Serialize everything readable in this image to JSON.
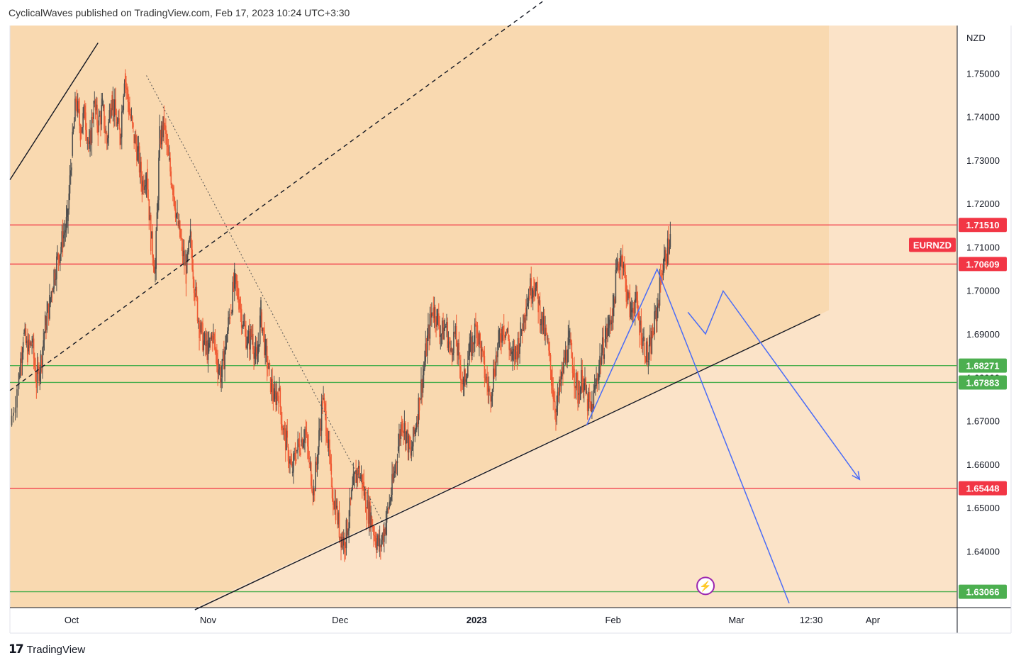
{
  "header": {
    "published_line": "CyclicalWaves published on TradingView.com, Feb 17, 2023 10:24 UTC+3:30"
  },
  "footer": {
    "logo_glyph": "17",
    "brand": "TradingView"
  },
  "chart_data": {
    "type": "candlestick",
    "symbol": "EURNZD",
    "currency": "NZD",
    "y_range": [
      1.627,
      1.761
    ],
    "x_range_days": [
      -12,
      180
    ],
    "grid": false,
    "colors": {
      "background": "#fbe3c8",
      "zone": "#f9d9b0",
      "up_candle": "#4f4f4f",
      "down_candle": "#f05a33",
      "resistance": "#f23645",
      "support": "#4caf50",
      "projection": "#4a6cf7",
      "channel": "#131722"
    },
    "y_ticks": [
      "1.75000",
      "1.74000",
      "1.73000",
      "1.72000",
      "1.71000",
      "1.70000",
      "1.69000",
      "1.68000",
      "1.67000",
      "1.66000",
      "1.65000",
      "1.64000"
    ],
    "x_ticks": [
      {
        "label": "Oct",
        "day": 0,
        "bold": false
      },
      {
        "label": "Nov",
        "day": 31,
        "bold": false
      },
      {
        "label": "Dec",
        "day": 61,
        "bold": false
      },
      {
        "label": "2023",
        "day": 92,
        "bold": true
      },
      {
        "label": "Feb",
        "day": 123,
        "bold": false
      },
      {
        "label": "Mar",
        "day": 151,
        "bold": false
      },
      {
        "label": "12:30",
        "day": 168,
        "bold": false
      },
      {
        "label": "Apr",
        "day": 182,
        "bold": false
      }
    ],
    "levels": [
      {
        "value": 1.7151,
        "label": "1.71510",
        "kind": "resistance"
      },
      {
        "value": 1.70609,
        "label": "1.70609",
        "kind": "resistance"
      },
      {
        "value": 1.68271,
        "label": "1.68271",
        "kind": "support"
      },
      {
        "value": 1.67883,
        "label": "1.67883",
        "kind": "support"
      },
      {
        "value": 1.65448,
        "label": "1.65448",
        "kind": "resistance"
      },
      {
        "value": 1.63066,
        "label": "1.63066",
        "kind": "support"
      }
    ],
    "symbol_label": {
      "text": "EURNZD",
      "value": 1.7105
    },
    "price_path": [
      [
        -14,
        1.669
      ],
      [
        -12,
        1.68
      ],
      [
        -11,
        1.69
      ],
      [
        -10,
        1.686
      ],
      [
        -9,
        1.688
      ],
      [
        -8,
        1.679
      ],
      [
        -7,
        1.684
      ],
      [
        -6,
        1.692
      ],
      [
        -5,
        1.697
      ],
      [
        -4,
        1.704
      ],
      [
        -3,
        1.708
      ],
      [
        -2,
        1.712
      ],
      [
        -1,
        1.716
      ],
      [
        0,
        1.731
      ],
      [
        1,
        1.744
      ],
      [
        2,
        1.737
      ],
      [
        3,
        1.741
      ],
      [
        4,
        1.732
      ],
      [
        5,
        1.743
      ],
      [
        6,
        1.738
      ],
      [
        7,
        1.742
      ],
      [
        8,
        1.734
      ],
      [
        9,
        1.745
      ],
      [
        10,
        1.74
      ],
      [
        11,
        1.735
      ],
      [
        12,
        1.75
      ],
      [
        13,
        1.742
      ],
      [
        14,
        1.736
      ],
      [
        15,
        1.732
      ],
      [
        16,
        1.724
      ],
      [
        17,
        1.728
      ],
      [
        18,
        1.712
      ],
      [
        19,
        1.705
      ],
      [
        20,
        1.735
      ],
      [
        21,
        1.738
      ],
      [
        22,
        1.73
      ],
      [
        23,
        1.724
      ],
      [
        24,
        1.716
      ],
      [
        25,
        1.71
      ],
      [
        26,
        1.704
      ],
      [
        27,
        1.712
      ],
      [
        28,
        1.7
      ],
      [
        29,
        1.692
      ],
      [
        30,
        1.688
      ],
      [
        31,
        1.686
      ],
      [
        32,
        1.69
      ],
      [
        33,
        1.684
      ],
      [
        34,
        1.68
      ],
      [
        35,
        1.688
      ],
      [
        36,
        1.695
      ],
      [
        37,
        1.702
      ],
      [
        38,
        1.698
      ],
      [
        39,
        1.692
      ],
      [
        40,
        1.688
      ],
      [
        41,
        1.69
      ],
      [
        42,
        1.683
      ],
      [
        43,
        1.695
      ],
      [
        44,
        1.686
      ],
      [
        45,
        1.68
      ],
      [
        46,
        1.675
      ],
      [
        47,
        1.677
      ],
      [
        48,
        1.668
      ],
      [
        49,
        1.664
      ],
      [
        50,
        1.658
      ],
      [
        51,
        1.663
      ],
      [
        52,
        1.665
      ],
      [
        53,
        1.668
      ],
      [
        54,
        1.66
      ],
      [
        55,
        1.654
      ],
      [
        56,
        1.664
      ],
      [
        57,
        1.675
      ],
      [
        58,
        1.668
      ],
      [
        59,
        1.655
      ],
      [
        60,
        1.65
      ],
      [
        61,
        1.644
      ],
      [
        62,
        1.642
      ],
      [
        63,
        1.648
      ],
      [
        64,
        1.655
      ],
      [
        65,
        1.659
      ],
      [
        66,
        1.656
      ],
      [
        67,
        1.65
      ],
      [
        68,
        1.648
      ],
      [
        69,
        1.643
      ],
      [
        70,
        1.641
      ],
      [
        71,
        1.645
      ],
      [
        72,
        1.65
      ],
      [
        73,
        1.656
      ],
      [
        74,
        1.663
      ],
      [
        75,
        1.67
      ],
      [
        76,
        1.667
      ],
      [
        77,
        1.662
      ],
      [
        78,
        1.668
      ],
      [
        79,
        1.675
      ],
      [
        80,
        1.682
      ],
      [
        81,
        1.69
      ],
      [
        82,
        1.696
      ],
      [
        83,
        1.694
      ],
      [
        84,
        1.69
      ],
      [
        85,
        1.692
      ],
      [
        86,
        1.686
      ],
      [
        87,
        1.69
      ],
      [
        88,
        1.684
      ],
      [
        89,
        1.678
      ],
      [
        90,
        1.684
      ],
      [
        91,
        1.688
      ],
      [
        92,
        1.692
      ],
      [
        93,
        1.686
      ],
      [
        94,
        1.68
      ],
      [
        95,
        1.676
      ],
      [
        96,
        1.682
      ],
      [
        97,
        1.688
      ],
      [
        98,
        1.692
      ],
      [
        99,
        1.69
      ],
      [
        100,
        1.684
      ],
      [
        101,
        1.686
      ],
      [
        102,
        1.69
      ],
      [
        103,
        1.696
      ],
      [
        104,
        1.7
      ],
      [
        105,
        1.702
      ],
      [
        106,
        1.697
      ],
      [
        107,
        1.692
      ],
      [
        108,
        1.688
      ],
      [
        109,
        1.68
      ],
      [
        110,
        1.672
      ],
      [
        111,
        1.678
      ],
      [
        112,
        1.684
      ],
      [
        113,
        1.688
      ],
      [
        114,
        1.682
      ],
      [
        115,
        1.676
      ],
      [
        116,
        1.68
      ],
      [
        117,
        1.675
      ],
      [
        118,
        1.672
      ],
      [
        119,
        1.678
      ],
      [
        120,
        1.684
      ],
      [
        121,
        1.688
      ],
      [
        122,
        1.692
      ],
      [
        123,
        1.696
      ],
      [
        124,
        1.706
      ],
      [
        125,
        1.708
      ],
      [
        126,
        1.7
      ],
      [
        127,
        1.695
      ],
      [
        128,
        1.698
      ],
      [
        129,
        1.692
      ],
      [
        130,
        1.688
      ],
      [
        131,
        1.684
      ],
      [
        132,
        1.69
      ],
      [
        133,
        1.696
      ],
      [
        134,
        1.704
      ],
      [
        135,
        1.708
      ],
      [
        136,
        1.712
      ]
    ],
    "channel_lines": [
      {
        "from": [
          -14,
          1.7255
        ],
        "to": [
          6,
          1.757
        ],
        "style": "solid"
      },
      {
        "from": [
          -14,
          1.677
        ],
        "to": [
          186,
          1.825
        ],
        "style": "dashed"
      },
      {
        "from": [
          17,
          1.7495
        ],
        "to": [
          71,
          1.646
        ],
        "style": "dotted"
      },
      {
        "from": [
          28,
          1.6265
        ],
        "to": [
          170,
          1.6945
        ],
        "style": "solid"
      }
    ],
    "projection_paths": [
      [
        [
          117,
          1.669
        ],
        [
          133,
          1.7049
        ],
        [
          163,
          1.628
        ]
      ],
      [
        [
          140,
          1.695
        ],
        [
          144,
          1.69
        ],
        [
          148,
          1.6999
        ],
        [
          179,
          1.6565
        ]
      ]
    ],
    "marker": {
      "day": 144,
      "value": 1.632,
      "glyph": "⚡"
    }
  }
}
